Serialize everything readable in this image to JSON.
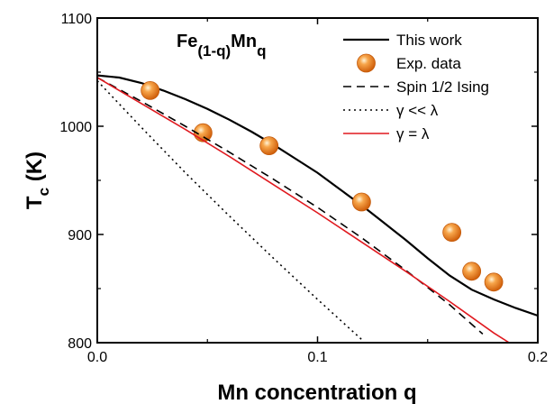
{
  "chart_data": {
    "type": "line",
    "annotation": {
      "base": "Fe",
      "sub1": "(1-q)",
      "mid": "Mn",
      "sub2": "q"
    },
    "xlabel": "Mn concentration q",
    "ylabel": {
      "main": "T",
      "sub": "c",
      "unit": " (K)"
    },
    "xlim": [
      0.0,
      0.2
    ],
    "ylim": [
      800,
      1100
    ],
    "xticks": [
      0.0,
      0.1,
      0.2
    ],
    "xtick_labels": [
      "0.0",
      "0.1",
      "0.2"
    ],
    "yticks": [
      800,
      900,
      1000,
      1100
    ],
    "ytick_labels": [
      "800",
      "900",
      "1000",
      "1100"
    ],
    "grid": false,
    "legend": {
      "placement": "top-right"
    },
    "series": [
      {
        "name": "This work",
        "kind": "line",
        "style": "solid",
        "color": "#000000",
        "x": [
          0.0,
          0.01,
          0.02,
          0.03,
          0.04,
          0.05,
          0.06,
          0.07,
          0.08,
          0.09,
          0.1,
          0.11,
          0.12,
          0.13,
          0.14,
          0.15,
          0.16,
          0.17,
          0.18,
          0.19,
          0.2
        ],
        "y": [
          1047,
          1045,
          1040,
          1033,
          1025,
          1016,
          1006,
          995,
          983,
          970,
          957,
          942,
          927,
          911,
          895,
          878,
          862,
          849,
          840,
          832,
          825
        ]
      },
      {
        "name": "Exp. data",
        "kind": "scatter",
        "color": "#f28a1e",
        "x": [
          0.024,
          0.048,
          0.078,
          0.12,
          0.161,
          0.17,
          0.18
        ],
        "y": [
          1033,
          994,
          982,
          930,
          902,
          866,
          856
        ]
      },
      {
        "name": "Spin 1/2 Ising",
        "kind": "line",
        "style": "dashed",
        "color": "#000000",
        "x": [
          0.0,
          0.02,
          0.04,
          0.06,
          0.08,
          0.1,
          0.12,
          0.14,
          0.16,
          0.17,
          0.175
        ],
        "y": [
          1045,
          1023,
          1000,
          976,
          951,
          925,
          897,
          867,
          835,
          817,
          808
        ]
      },
      {
        "name": "γ << λ",
        "kind": "line",
        "style": "dotted",
        "color": "#000000",
        "x": [
          0.0,
          0.02,
          0.04,
          0.06,
          0.08,
          0.1,
          0.12
        ],
        "y": [
          1042,
          999,
          957,
          917,
          878,
          840,
          803
        ]
      },
      {
        "name": "γ = λ",
        "kind": "line",
        "style": "solid",
        "color": "#e0191f",
        "x": [
          0.0,
          0.02,
          0.04,
          0.06,
          0.08,
          0.1,
          0.12,
          0.14,
          0.16,
          0.18,
          0.187
        ],
        "y": [
          1045,
          1021,
          997,
          972,
          946,
          920,
          893,
          866,
          838,
          809,
          800
        ]
      }
    ]
  }
}
